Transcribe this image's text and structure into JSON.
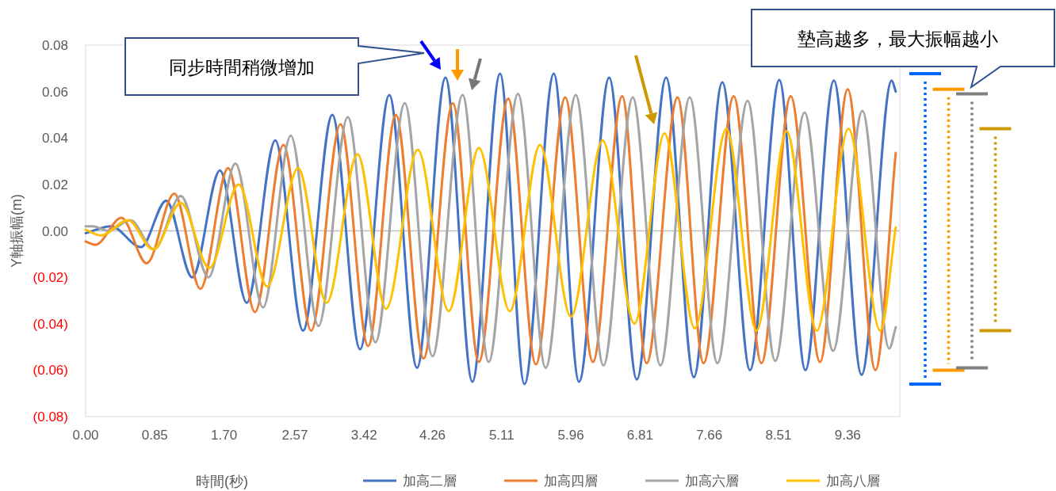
{
  "chart_data": {
    "type": "line",
    "xlabel": "時間(秒)",
    "ylabel": "Y軸振幅(m)",
    "annotations": [
      "同步時間稍微增加",
      "墊高越多，最大振幅越小"
    ],
    "legend": "bottom",
    "xlim": [
      0,
      10.0
    ],
    "xticks": [
      {
        "value": 0,
        "label": "0.00"
      },
      {
        "value": 0.85,
        "label": "0.85"
      },
      {
        "value": 1.7,
        "label": "1.70"
      },
      {
        "value": 2.57,
        "label": "2.57"
      },
      {
        "value": 3.42,
        "label": "3.42"
      },
      {
        "value": 4.26,
        "label": "4.26"
      },
      {
        "value": 5.11,
        "label": "5.11"
      },
      {
        "value": 5.96,
        "label": "5.96"
      },
      {
        "value": 6.81,
        "label": "6.81"
      },
      {
        "value": 7.66,
        "label": "7.66"
      },
      {
        "value": 8.51,
        "label": "8.51"
      },
      {
        "value": 9.36,
        "label": "9.36"
      }
    ],
    "ylim": [
      -0.08,
      0.08
    ],
    "yticks": [
      {
        "value": 0.08,
        "label": "0.08"
      },
      {
        "value": 0.06,
        "label": "0.06"
      },
      {
        "value": 0.04,
        "label": "0.04"
      },
      {
        "value": 0.02,
        "label": "0.02"
      },
      {
        "value": 0,
        "label": "0.00"
      },
      {
        "value": -0.02,
        "label": "(0.02)"
      },
      {
        "value": -0.04,
        "label": "(0.04)"
      },
      {
        "value": -0.06,
        "label": "(0.06)"
      },
      {
        "value": -0.08,
        "label": "(0.08)"
      }
    ],
    "ref_lines": [
      {
        "axis": "y",
        "value": 0,
        "color": "#bfbfbf"
      }
    ],
    "series": [
      {
        "name": "加高二層",
        "color": "#4472c4",
        "x": [
          0,
          0.31,
          0.68,
          0.99,
          1.31,
          1.65,
          1.98,
          2.33,
          2.67,
          3.03,
          3.37,
          3.73,
          4.07,
          4.42,
          4.75,
          5.09,
          5.39,
          5.75,
          6.06,
          6.43,
          6.77,
          7.13,
          7.47,
          7.82,
          8.16,
          8.52,
          8.84,
          9.19,
          9.53,
          9.9,
          9.95
        ],
        "values": [
          -0.001,
          0.002,
          -0.007,
          0.013,
          -0.02,
          0.026,
          -0.031,
          0.039,
          -0.043,
          0.05,
          -0.051,
          0.0585,
          -0.059,
          0.066,
          -0.065,
          0.0677,
          -0.066,
          0.0677,
          -0.065,
          0.066,
          -0.064,
          0.066,
          -0.063,
          0.064,
          -0.06,
          0.065,
          -0.06,
          0.0647,
          -0.062,
          0.0647,
          0.06
        ]
      },
      {
        "name": "加高四層",
        "color": "#ed7d31",
        "x": [
          0,
          0.12,
          0.44,
          0.75,
          1.09,
          1.41,
          1.75,
          2.08,
          2.43,
          2.77,
          3.13,
          3.47,
          3.81,
          4.15,
          4.51,
          4.83,
          5.19,
          5.53,
          5.89,
          6.23,
          6.59,
          6.89,
          7.27,
          7.59,
          7.96,
          8.3,
          8.66,
          9.02,
          9.36,
          9.7,
          9.95
        ],
        "values": [
          -0.0046,
          -0.006,
          0.0056,
          -0.014,
          0.016,
          -0.025,
          0.027,
          -0.035,
          0.037,
          -0.043,
          0.046,
          -0.0496,
          0.05,
          -0.055,
          0.055,
          -0.0565,
          0.057,
          -0.0575,
          0.0575,
          -0.0565,
          0.058,
          -0.057,
          0.0575,
          -0.057,
          0.058,
          -0.057,
          0.058,
          -0.0565,
          0.061,
          -0.06,
          0.0336
        ]
      },
      {
        "name": "加高六層",
        "color": "#a5a5a5",
        "x": [
          0,
          0.09,
          0.28,
          0.55,
          0.84,
          1.17,
          1.51,
          1.84,
          2.18,
          2.52,
          2.86,
          3.22,
          3.56,
          3.92,
          4.26,
          4.63,
          4.95,
          5.31,
          5.65,
          6.02,
          6.36,
          6.72,
          7.06,
          7.42,
          7.76,
          8.13,
          8.47,
          8.83,
          9.18,
          9.54,
          9.87,
          9.95
        ],
        "values": [
          0.002,
          0.002,
          0.0,
          0.0046,
          -0.008,
          0.015,
          -0.02,
          0.029,
          -0.033,
          0.041,
          -0.041,
          0.049,
          -0.048,
          0.055,
          -0.054,
          0.0585,
          -0.0565,
          0.059,
          -0.059,
          0.0585,
          -0.058,
          0.0575,
          -0.058,
          0.0575,
          -0.057,
          0.056,
          -0.056,
          0.051,
          -0.0517,
          0.0517,
          -0.0507,
          -0.0415
        ]
      },
      {
        "name": "加高八層",
        "color": "#ffc000",
        "x": [
          0,
          0.19,
          0.52,
          0.83,
          1.17,
          1.52,
          1.88,
          2.23,
          2.61,
          2.96,
          3.34,
          3.69,
          4.08,
          4.46,
          4.83,
          5.21,
          5.58,
          5.96,
          6.35,
          6.74,
          7.11,
          7.48,
          7.87,
          8.24,
          8.61,
          8.98,
          9.37,
          9.76,
          9.95
        ],
        "values": [
          0.0005,
          -0.002,
          0.0046,
          -0.008,
          0.012,
          -0.016,
          0.02,
          -0.024,
          0.027,
          -0.031,
          0.033,
          -0.0336,
          0.035,
          -0.0346,
          0.0357,
          -0.0346,
          0.037,
          -0.037,
          0.039,
          -0.04,
          0.042,
          -0.042,
          0.044,
          -0.043,
          0.043,
          -0.043,
          0.044,
          -0.043,
          0.0015
        ]
      }
    ]
  }
}
